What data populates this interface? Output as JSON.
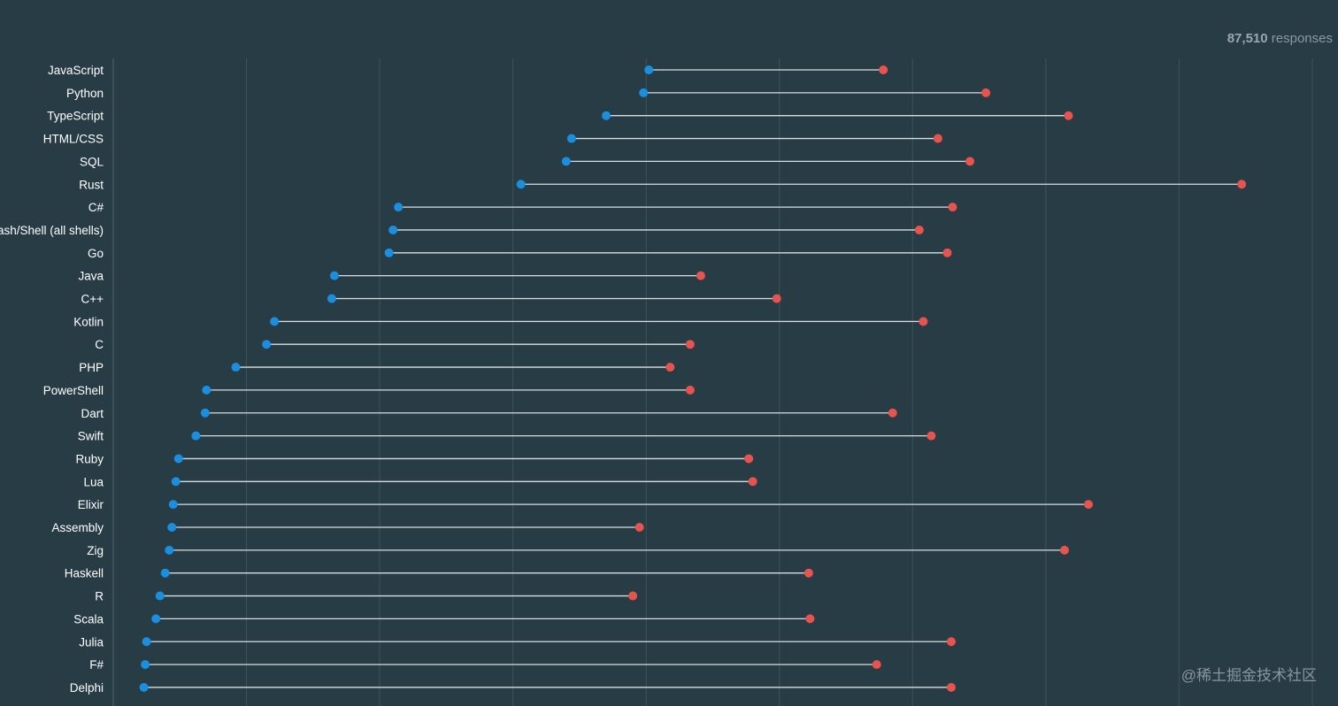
{
  "header": {
    "responses_count": "87,510",
    "responses_label": "responses"
  },
  "watermark": "@稀土掘金技术社区",
  "colors": {
    "background": "#283c45",
    "grid": "#3d535b",
    "axis": "#4c626a",
    "connector": "#d7dee1",
    "label": "#ffffff",
    "low_marker": "#1a8fe0",
    "high_marker": "#e8524f"
  },
  "chart_data": {
    "type": "dumbbell",
    "orientation": "horizontal",
    "xlim": [
      0,
      90
    ],
    "grid_step": 10,
    "grid": true,
    "legend": "none",
    "categories": [
      "JavaScript",
      "Python",
      "TypeScript",
      "HTML/CSS",
      "SQL",
      "Rust",
      "C#",
      "Bash/Shell (all shells)",
      "Go",
      "Java",
      "C++",
      "Kotlin",
      "C",
      "PHP",
      "PowerShell",
      "Dart",
      "Swift",
      "Ruby",
      "Lua",
      "Elixir",
      "Assembly",
      "Zig",
      "Haskell",
      "R",
      "Scala",
      "Julia",
      "F#",
      "Delphi"
    ],
    "series": [
      {
        "values": [
          40.2,
          39.8,
          37.0,
          34.4,
          34.0,
          30.6,
          21.4,
          21.0,
          20.7,
          16.6,
          16.4,
          12.1,
          11.5,
          9.2,
          7.0,
          6.9,
          6.2,
          4.9,
          4.7,
          4.5,
          4.4,
          4.2,
          3.9,
          3.5,
          3.2,
          2.5,
          2.4,
          2.3
        ]
      },
      {
        "values": [
          57.8,
          65.5,
          71.7,
          61.9,
          64.3,
          84.7,
          63.0,
          60.5,
          62.6,
          44.1,
          49.8,
          60.8,
          43.3,
          41.8,
          43.3,
          58.5,
          61.4,
          47.7,
          48.0,
          73.2,
          39.5,
          71.4,
          52.2,
          39.0,
          52.3,
          62.9,
          57.3,
          62.9
        ]
      }
    ]
  }
}
